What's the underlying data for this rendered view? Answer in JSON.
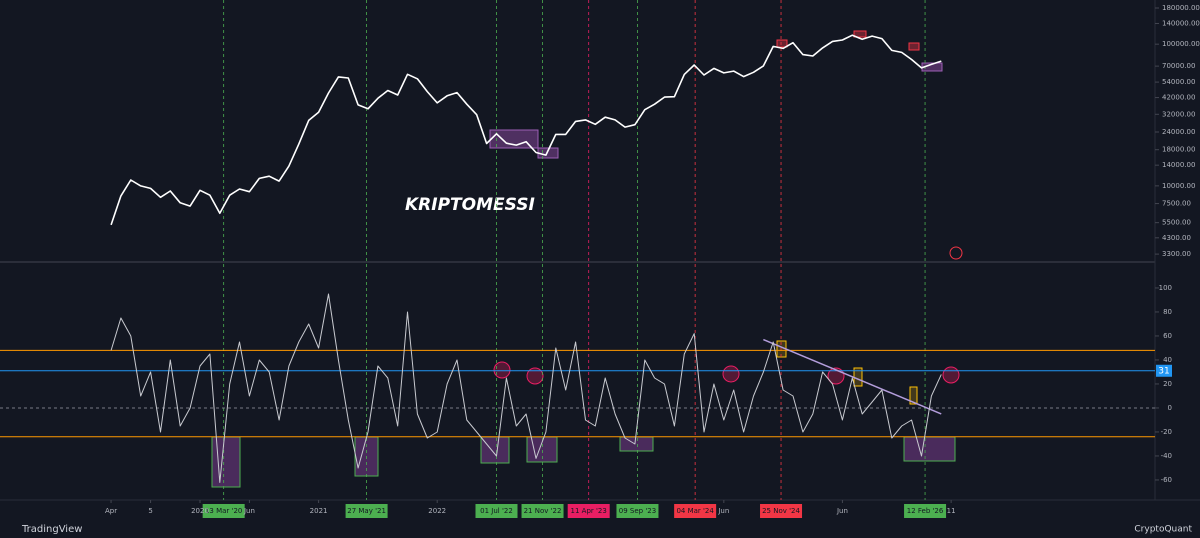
{
  "watermark": "KRIPTOMESSI",
  "brand_left": "TradingView",
  "brand_right": "CryptoQuant",
  "chart_data": [
    {
      "type": "line",
      "log_scale": true,
      "color": "#ffffff",
      "x": [
        "2019-04",
        "2019-05",
        "2019-06",
        "2019-07",
        "2019-08",
        "2019-09",
        "2019-10",
        "2019-11",
        "2019-12",
        "2020-01",
        "2020-02",
        "2020-03",
        "2020-04",
        "2020-05",
        "2020-06",
        "2020-07",
        "2020-08",
        "2020-09",
        "2020-10",
        "2020-11",
        "2020-12",
        "2021-01",
        "2021-02",
        "2021-03",
        "2021-04",
        "2021-05",
        "2021-06",
        "2021-07",
        "2021-08",
        "2021-09",
        "2021-10",
        "2021-11",
        "2021-12",
        "2022-01",
        "2022-02",
        "2022-03",
        "2022-04",
        "2022-05",
        "2022-06",
        "2022-07",
        "2022-08",
        "2022-09",
        "2022-10",
        "2022-11",
        "2022-12",
        "2023-01",
        "2023-02",
        "2023-03",
        "2023-04",
        "2023-05",
        "2023-06",
        "2023-07",
        "2023-08",
        "2023-09",
        "2023-10",
        "2023-11",
        "2023-12",
        "2024-01",
        "2024-02",
        "2024-03",
        "2024-04",
        "2024-05",
        "2024-06",
        "2024-07",
        "2024-08",
        "2024-09",
        "2024-10",
        "2024-11",
        "2024-12",
        "2025-01",
        "2025-02",
        "2025-03",
        "2025-04",
        "2025-05",
        "2025-06",
        "2025-07",
        "2025-08",
        "2025-09",
        "2025-10",
        "2025-11",
        "2025-12",
        "2026-01",
        "2026-02",
        "2026-03",
        "2026-04"
      ],
      "values": [
        5300,
        8500,
        11000,
        10000,
        9600,
        8300,
        9200,
        7600,
        7200,
        9300,
        8600,
        6400,
        8600,
        9500,
        9100,
        11300,
        11700,
        10800,
        13800,
        19700,
        29000,
        33100,
        45200,
        58800,
        57700,
        37300,
        35000,
        41500,
        47100,
        43800,
        61300,
        57000,
        46300,
        38500,
        43200,
        45500,
        37700,
        31800,
        19900,
        23300,
        20000,
        19400,
        20500,
        17200,
        16500,
        23100,
        23100,
        28500,
        29200,
        27200,
        30500,
        29200,
        26000,
        27000,
        34500,
        37700,
        42300,
        42600,
        61200,
        71300,
        60600,
        67500,
        62700,
        64600,
        59000,
        63300,
        70200,
        96400,
        93400,
        102400,
        84400,
        82500,
        94200,
        104600,
        107100,
        115700,
        108200,
        114000,
        109500,
        90400,
        87500,
        78000,
        68000,
        72000,
        76000
      ],
      "ylim": [
        2950,
        189000
      ],
      "yticks": [
        {
          "value": 180000,
          "label": "180000.00"
        },
        {
          "value": 140000,
          "label": "140000.00"
        },
        {
          "value": 100000,
          "label": "100000.00"
        },
        {
          "value": 70000,
          "label": "70000.00"
        },
        {
          "value": 54000,
          "label": "54000.00"
        },
        {
          "value": 42000,
          "label": "42000.00"
        },
        {
          "value": 32000,
          "label": "32000.00"
        },
        {
          "value": 24000,
          "label": "24000.00"
        },
        {
          "value": 18000,
          "label": "18000.00"
        },
        {
          "value": 14000,
          "label": "14000.00"
        },
        {
          "value": 10000,
          "label": "10000.00"
        },
        {
          "value": 7500,
          "label": "7500.00"
        },
        {
          "value": 5500,
          "label": "5500.00"
        },
        {
          "value": 4300,
          "label": "4300.00"
        },
        {
          "value": 3300,
          "label": "3300.00"
        }
      ],
      "events": [
        {
          "x": "2020-03-13",
          "label": "13 Mar '20",
          "color": "#4caf50"
        },
        {
          "x": "2021-05-27",
          "label": "27 May '21",
          "color": "#4caf50"
        },
        {
          "x": "2022-07-01",
          "label": "01 Jul '22",
          "color": "#4caf50"
        },
        {
          "x": "2022-11-21",
          "label": "21 Nov '22",
          "color": "#4caf50"
        },
        {
          "x": "2023-04-11",
          "label": "11 Apr '23",
          "color": "#e91e63"
        },
        {
          "x": "2023-09-09",
          "label": "09 Sep '23",
          "color": "#4caf50"
        },
        {
          "x": "2024-03-04",
          "label": "04 Mar '24",
          "color": "#f23645"
        },
        {
          "x": "2024-11-25",
          "label": "25 Nov '24",
          "color": "#f23645"
        },
        {
          "x": "2026-02-12",
          "label": "12 Feb '26",
          "color": "#4caf50"
        }
      ]
    },
    {
      "type": "line",
      "color": "#c8cad0",
      "x": [
        "2019-04",
        "2019-05",
        "2019-06",
        "2019-07",
        "2019-08",
        "2019-09",
        "2019-10",
        "2019-11",
        "2019-12",
        "2020-01",
        "2020-02",
        "2020-03",
        "2020-04",
        "2020-05",
        "2020-06",
        "2020-07",
        "2020-08",
        "2020-09",
        "2020-10",
        "2020-11",
        "2020-12",
        "2021-01",
        "2021-02",
        "2021-03",
        "2021-04",
        "2021-05",
        "2021-06",
        "2021-07",
        "2021-08",
        "2021-09",
        "2021-10",
        "2021-11",
        "2021-12",
        "2022-01",
        "2022-02",
        "2022-03",
        "2022-04",
        "2022-05",
        "2022-06",
        "2022-07",
        "2022-08",
        "2022-09",
        "2022-10",
        "2022-11",
        "2022-12",
        "2023-01",
        "2023-02",
        "2023-03",
        "2023-04",
        "2023-05",
        "2023-06",
        "2023-07",
        "2023-08",
        "2023-09",
        "2023-10",
        "2023-11",
        "2023-12",
        "2024-01",
        "2024-02",
        "2024-03",
        "2024-04",
        "2024-05",
        "2024-06",
        "2024-07",
        "2024-08",
        "2024-09",
        "2024-10",
        "2024-11",
        "2024-12",
        "2025-01",
        "2025-02",
        "2025-03",
        "2025-04",
        "2025-05",
        "2025-06",
        "2025-07",
        "2025-08",
        "2025-09",
        "2025-10",
        "2025-11",
        "2025-12",
        "2026-01",
        "2026-02",
        "2026-03",
        "2026-04"
      ],
      "values": [
        48,
        75,
        60,
        10,
        30,
        -20,
        40,
        -15,
        0,
        35,
        45,
        -62,
        20,
        55,
        10,
        40,
        30,
        -10,
        35,
        55,
        70,
        50,
        95,
        40,
        -10,
        -50,
        -20,
        35,
        25,
        -15,
        80,
        -5,
        -25,
        -20,
        20,
        40,
        -10,
        -20,
        -30,
        -40,
        25,
        -15,
        -5,
        -42,
        -20,
        50,
        15,
        55,
        -10,
        -15,
        25,
        -5,
        -25,
        -30,
        40,
        25,
        20,
        -15,
        45,
        62,
        -20,
        20,
        -10,
        15,
        -20,
        10,
        30,
        55,
        15,
        10,
        -20,
        -5,
        30,
        20,
        -10,
        25,
        -5,
        5,
        15,
        -25,
        -15,
        -10,
        -40,
        10,
        28
      ],
      "ylim": [
        -76.7,
        120.8
      ],
      "yticks": [
        100,
        80,
        60,
        40,
        20,
        0,
        -20,
        -40,
        -60
      ],
      "hlines": [
        {
          "value": 48,
          "color": "#ff9800"
        },
        {
          "value": -24,
          "color": "#ff9800"
        },
        {
          "value": 31,
          "color": "#2196f3",
          "tag": true
        },
        {
          "value": 0,
          "color": "#787b86",
          "dash": true
        }
      ],
      "trendline": {
        "x": [
          "2024-10",
          "2026-04"
        ],
        "values": [
          57,
          -5
        ],
        "color": "#b39ddb"
      },
      "xticks": [
        {
          "value": "2019-04",
          "label": "Apr"
        },
        {
          "value": "2019-08",
          "label": "5"
        },
        {
          "value": "2020-01",
          "label": "2020"
        },
        {
          "value": "2020-06",
          "label": "Jun"
        },
        {
          "value": "2021-01",
          "label": "2021"
        },
        {
          "value": "2022-01",
          "label": "2022"
        },
        {
          "value": "2024-06",
          "label": "Jun"
        },
        {
          "value": "2025-06",
          "label": "Jun"
        },
        {
          "value": "2026-05",
          "label": "11"
        }
      ]
    }
  ]
}
